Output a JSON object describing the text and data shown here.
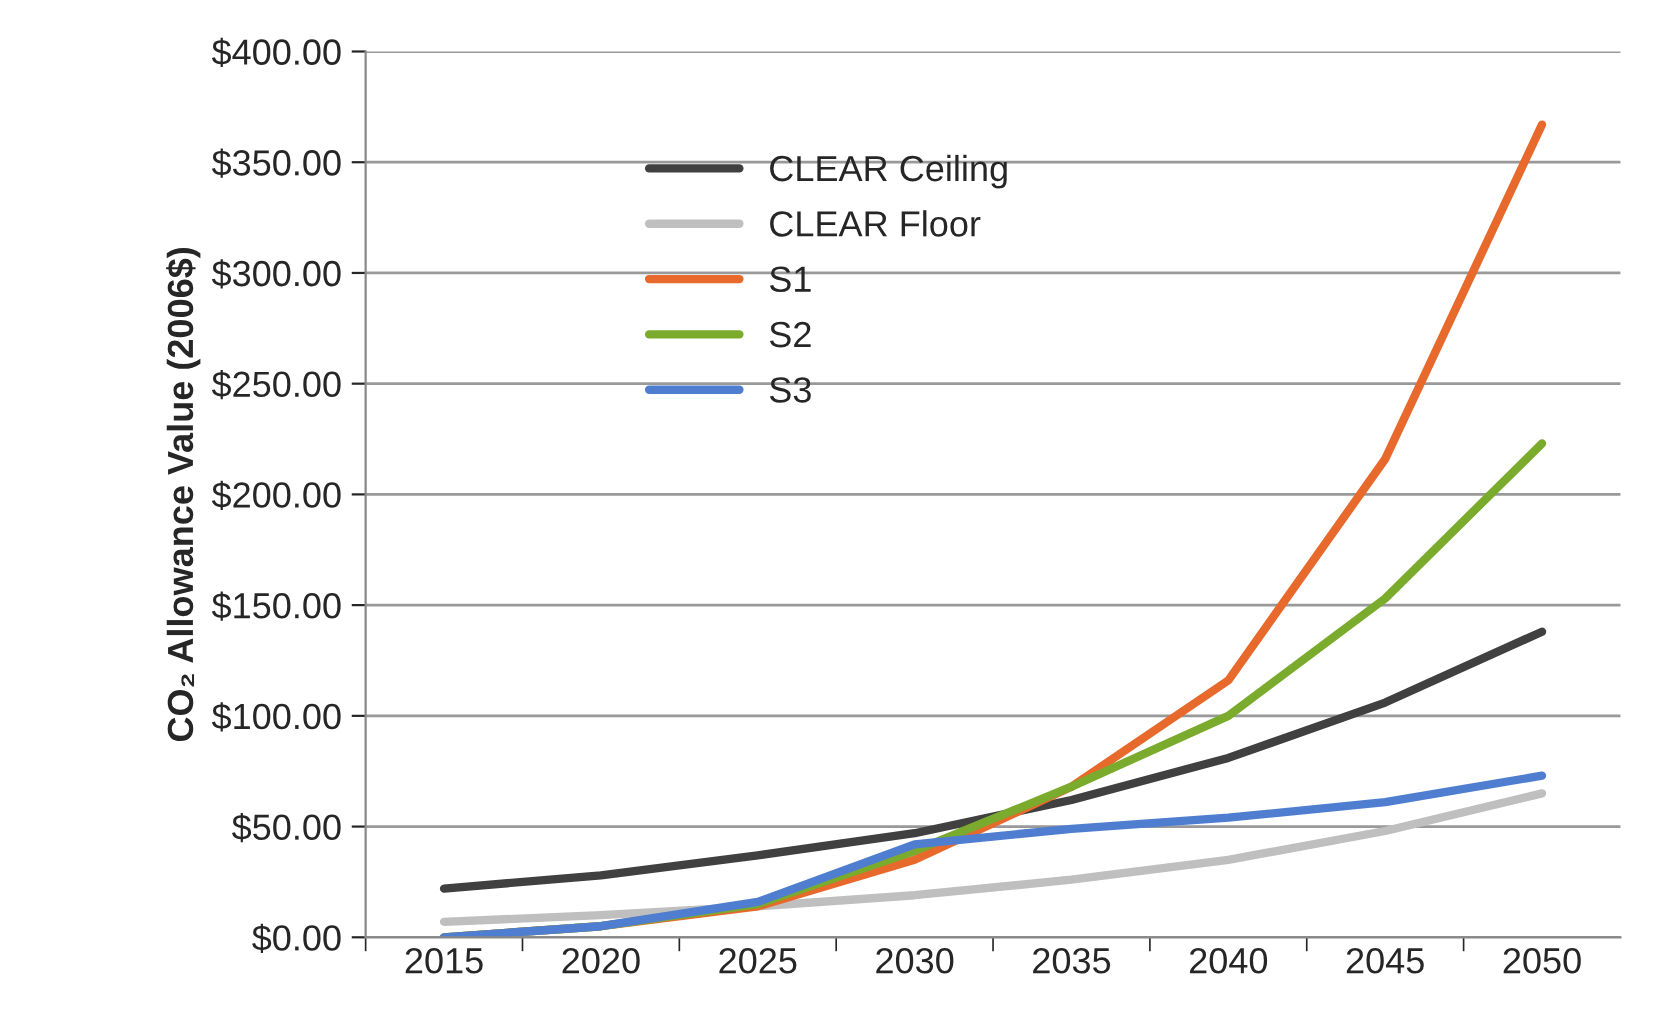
{
  "chart_data": {
    "type": "line",
    "ylabel": "CO₂ Allowance Value (2006$)",
    "categories": [
      "2015",
      "2020",
      "2025",
      "2030",
      "2035",
      "2040",
      "2045",
      "2050"
    ],
    "series": [
      {
        "name": "CLEAR Ceiling",
        "color": "#404040",
        "values": [
          22,
          28,
          37,
          47,
          62,
          81,
          106,
          138
        ]
      },
      {
        "name": "CLEAR Floor",
        "color": "#bfbfbf",
        "values": [
          7,
          10,
          14,
          19,
          26,
          35,
          48,
          65
        ]
      },
      {
        "name": "S1",
        "color": "#e8692c",
        "values": [
          0,
          5,
          14,
          35,
          68,
          116,
          216,
          367
        ]
      },
      {
        "name": "S2",
        "color": "#7aab2c",
        "values": [
          0,
          5,
          15,
          39,
          68,
          100,
          153,
          223
        ]
      },
      {
        "name": "S3",
        "color": "#4f7ed0",
        "values": [
          0,
          5,
          16,
          42,
          49,
          54,
          61,
          73
        ]
      }
    ],
    "ylim": [
      0,
      400
    ],
    "yticks": [
      {
        "value": 0,
        "label": "$0.00"
      },
      {
        "value": 50,
        "label": "$50.00"
      },
      {
        "value": 100,
        "label": "$100.00"
      },
      {
        "value": 150,
        "label": "$150.00"
      },
      {
        "value": 200,
        "label": "$200.00"
      },
      {
        "value": 250,
        "label": "$250.00"
      },
      {
        "value": 300,
        "label": "$300.00"
      },
      {
        "value": 350,
        "label": "$350.00"
      },
      {
        "value": 400,
        "label": "$400.00"
      }
    ],
    "grid": "y",
    "legend": "top left",
    "marker": "none",
    "line_style": "solid"
  }
}
